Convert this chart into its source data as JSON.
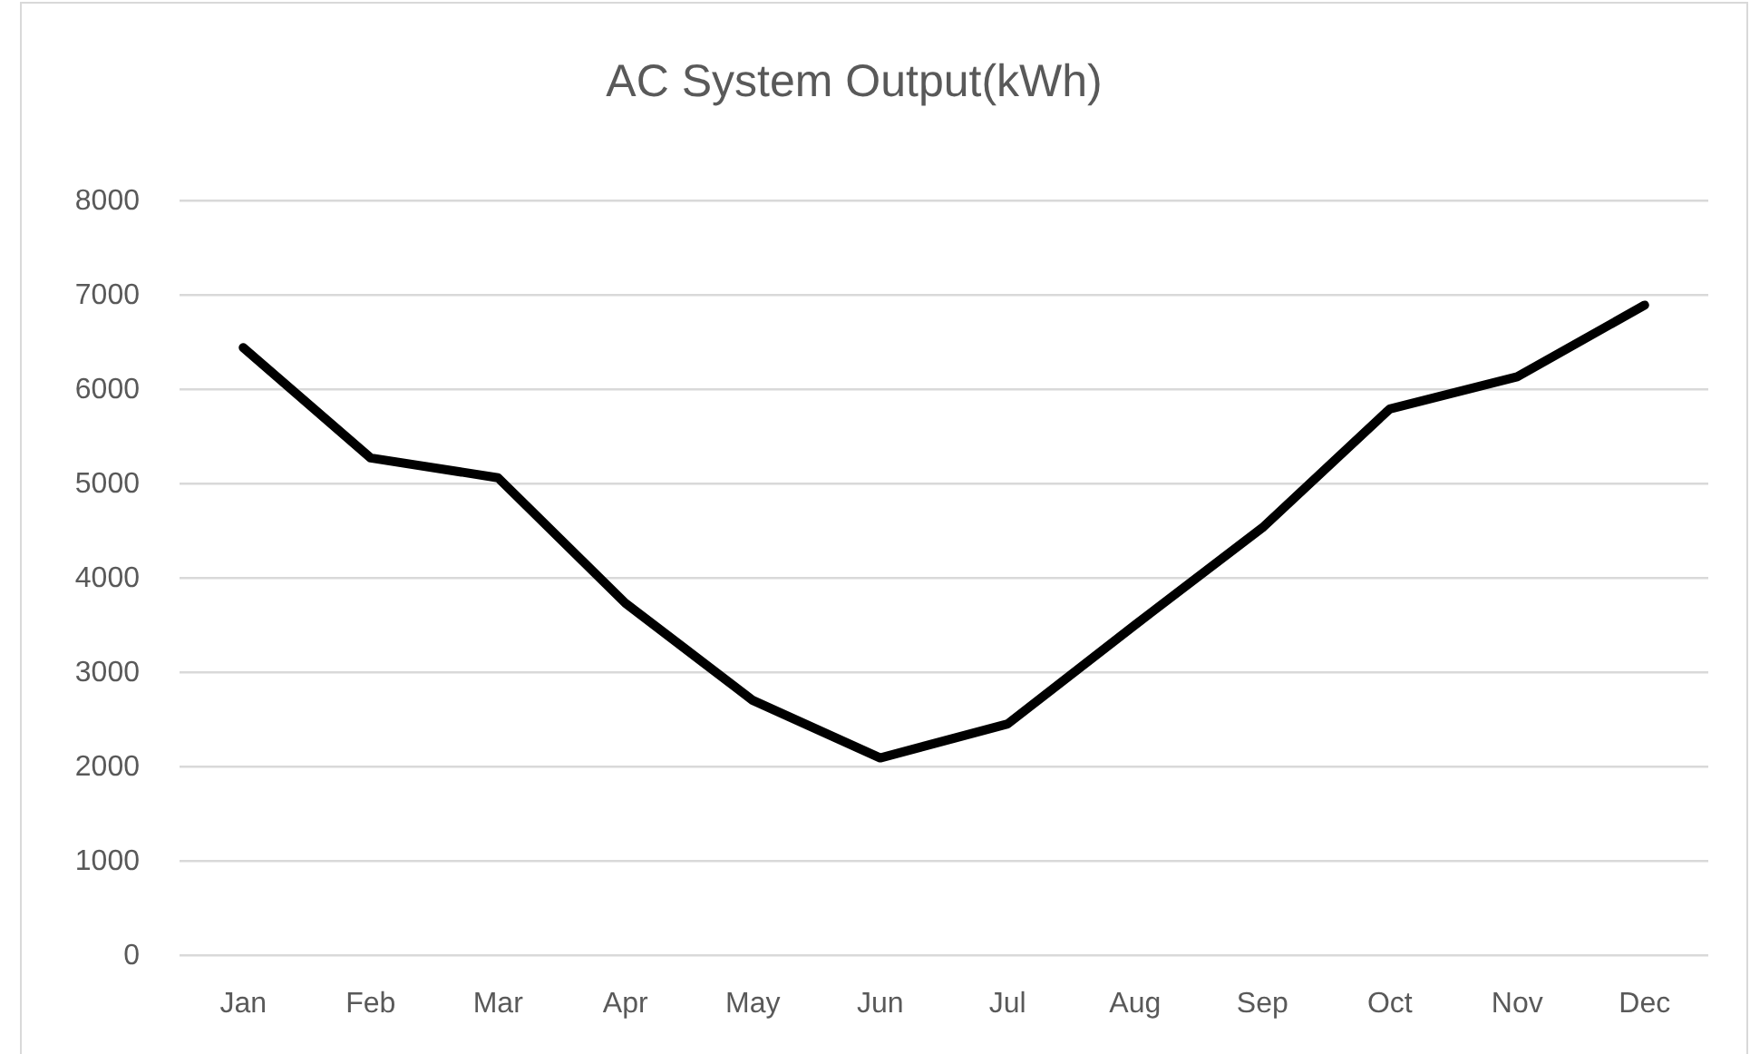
{
  "chart_data": {
    "type": "line",
    "title": "AC System Output(kWh)",
    "categories": [
      "Jan",
      "Feb",
      "Mar",
      "Apr",
      "May",
      "Jun",
      "Jul",
      "Aug",
      "Sep",
      "Oct",
      "Nov",
      "Dec"
    ],
    "series": [
      {
        "color": "#000000",
        "values": [
          6450,
          5280,
          5070,
          3740,
          2710,
          2100,
          2460,
          3510,
          4540,
          5800,
          6140,
          6900
        ]
      }
    ],
    "ylim": [
      0,
      8000
    ],
    "yticks": [
      0,
      1000,
      2000,
      3000,
      4000,
      5000,
      6000,
      7000,
      8000
    ],
    "grid": "y",
    "line_style": "solid"
  }
}
